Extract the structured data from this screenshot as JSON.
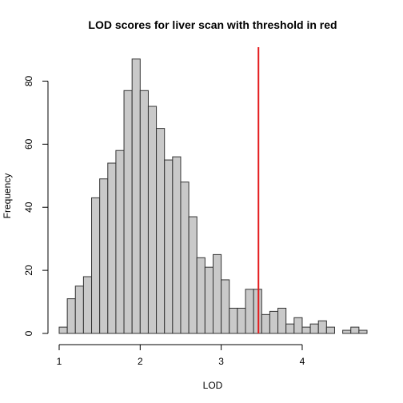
{
  "chart_data": {
    "type": "bar",
    "title": "LOD scores for liver scan with threshold in red",
    "xlabel": "LOD",
    "ylabel": "Frequency",
    "xlim": [
      1.0,
      4.8
    ],
    "ylim": [
      0,
      90
    ],
    "bin_width": 0.1,
    "bins": [
      {
        "x0": 1.0,
        "x1": 1.1,
        "count": 2
      },
      {
        "x0": 1.1,
        "x1": 1.2,
        "count": 11
      },
      {
        "x0": 1.2,
        "x1": 1.3,
        "count": 15
      },
      {
        "x0": 1.3,
        "x1": 1.4,
        "count": 18
      },
      {
        "x0": 1.4,
        "x1": 1.5,
        "count": 43
      },
      {
        "x0": 1.5,
        "x1": 1.6,
        "count": 49
      },
      {
        "x0": 1.6,
        "x1": 1.7,
        "count": 54
      },
      {
        "x0": 1.7,
        "x1": 1.8,
        "count": 58
      },
      {
        "x0": 1.8,
        "x1": 1.9,
        "count": 77
      },
      {
        "x0": 1.9,
        "x1": 2.0,
        "count": 87
      },
      {
        "x0": 2.0,
        "x1": 2.1,
        "count": 77
      },
      {
        "x0": 2.1,
        "x1": 2.2,
        "count": 72
      },
      {
        "x0": 2.2,
        "x1": 2.3,
        "count": 65
      },
      {
        "x0": 2.3,
        "x1": 2.4,
        "count": 55
      },
      {
        "x0": 2.4,
        "x1": 2.5,
        "count": 56
      },
      {
        "x0": 2.5,
        "x1": 2.6,
        "count": 48
      },
      {
        "x0": 2.6,
        "x1": 2.7,
        "count": 37
      },
      {
        "x0": 2.7,
        "x1": 2.8,
        "count": 24
      },
      {
        "x0": 2.8,
        "x1": 2.9,
        "count": 21
      },
      {
        "x0": 2.9,
        "x1": 3.0,
        "count": 25
      },
      {
        "x0": 3.0,
        "x1": 3.1,
        "count": 17
      },
      {
        "x0": 3.1,
        "x1": 3.2,
        "count": 8
      },
      {
        "x0": 3.2,
        "x1": 3.3,
        "count": 8
      },
      {
        "x0": 3.3,
        "x1": 3.4,
        "count": 14
      },
      {
        "x0": 3.4,
        "x1": 3.5,
        "count": 14
      },
      {
        "x0": 3.5,
        "x1": 3.6,
        "count": 6
      },
      {
        "x0": 3.6,
        "x1": 3.7,
        "count": 7
      },
      {
        "x0": 3.7,
        "x1": 3.8,
        "count": 8
      },
      {
        "x0": 3.8,
        "x1": 3.9,
        "count": 3
      },
      {
        "x0": 3.9,
        "x1": 4.0,
        "count": 5
      },
      {
        "x0": 4.0,
        "x1": 4.1,
        "count": 2
      },
      {
        "x0": 4.1,
        "x1": 4.2,
        "count": 3
      },
      {
        "x0": 4.2,
        "x1": 4.3,
        "count": 4
      },
      {
        "x0": 4.3,
        "x1": 4.4,
        "count": 2
      },
      {
        "x0": 4.4,
        "x1": 4.5,
        "count": 0
      },
      {
        "x0": 4.5,
        "x1": 4.6,
        "count": 1
      },
      {
        "x0": 4.6,
        "x1": 4.7,
        "count": 2
      },
      {
        "x0": 4.7,
        "x1": 4.8,
        "count": 1
      }
    ],
    "x_ticks": [
      1,
      2,
      3,
      4
    ],
    "x_tick_labels": [
      "1",
      "2",
      "3",
      "4"
    ],
    "y_ticks": [
      0,
      20,
      40,
      60,
      80
    ],
    "y_tick_labels": [
      "0",
      "20",
      "40",
      "60",
      "80"
    ],
    "threshold": {
      "x": 3.46,
      "color": "#e41a1c"
    },
    "bar_color": "#c9c9c9",
    "grid": false
  }
}
